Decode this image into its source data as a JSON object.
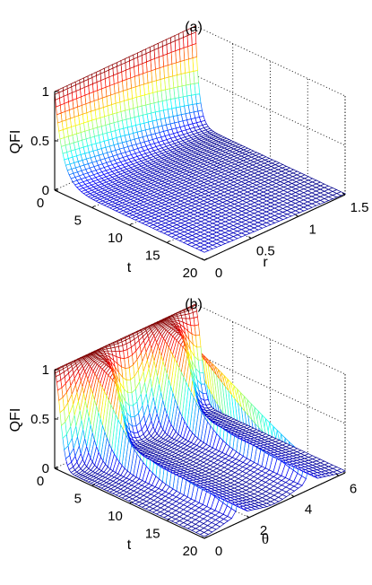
{
  "chart_data": [
    {
      "type": "surface",
      "title": "(a)",
      "xlabel": "t",
      "ylabel": "r",
      "zlabel": "QFI",
      "x_ticks": [
        "0",
        "5",
        "10",
        "15",
        "20"
      ],
      "y_ticks": [
        "0",
        "0.5",
        "1",
        "1.5"
      ],
      "z_ticks": [
        "0",
        "0.5",
        "1"
      ],
      "xlim": [
        0,
        20
      ],
      "ylim": [
        0,
        1.5
      ],
      "zlim": [
        0,
        1
      ],
      "grid": true,
      "colormap": "jet",
      "samples": {
        "t": [
          0,
          0.5,
          1,
          2,
          5,
          10,
          20
        ],
        "r_0": [
          1,
          0.68,
          0.46,
          0.22,
          0.08,
          0.07,
          0.06
        ],
        "r_0.75": [
          1,
          0.55,
          0.35,
          0.16,
          0.05,
          0.04,
          0.04
        ],
        "r_1.5": [
          1,
          0.28,
          0.12,
          0.03,
          0.01,
          0.01,
          0.01
        ]
      }
    },
    {
      "type": "surface",
      "title": "(b)",
      "xlabel": "t",
      "ylabel": "θ",
      "zlabel": "QFI",
      "x_ticks": [
        "0",
        "5",
        "10",
        "15",
        "20"
      ],
      "y_ticks": [
        "0",
        "2",
        "4",
        "6"
      ],
      "z_ticks": [
        "0",
        "0.5",
        "1"
      ],
      "xlim": [
        0,
        20
      ],
      "ylim": [
        0,
        6.28
      ],
      "zlim": [
        0,
        1
      ],
      "grid": true,
      "colormap": "jet",
      "samples": {
        "t": [
          0,
          0.5,
          1,
          2,
          5,
          10,
          20
        ],
        "theta_0": [
          1,
          0.22,
          0.08,
          0.03,
          0.02,
          0.02,
          0.02
        ],
        "theta_1.57": [
          1,
          0.95,
          0.85,
          0.6,
          0.2,
          0.08,
          0.05
        ],
        "theta_3.14": [
          1,
          0.3,
          0.12,
          0.05,
          0.03,
          0.02,
          0.02
        ]
      }
    }
  ]
}
